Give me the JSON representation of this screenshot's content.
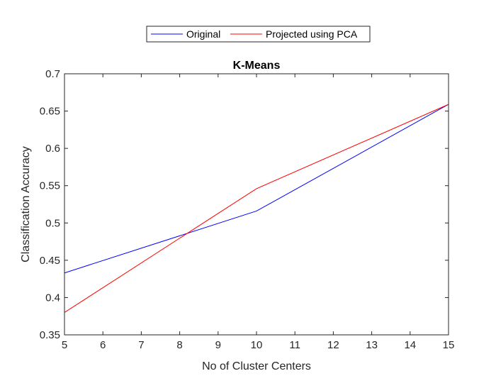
{
  "chart_data": {
    "type": "line",
    "title": "K-Means",
    "xlabel": "No of Cluster Centers",
    "ylabel": "Classification Accuracy",
    "xlim": [
      5,
      15
    ],
    "ylim": [
      0.35,
      0.7
    ],
    "xticks": [
      5,
      6,
      7,
      8,
      9,
      10,
      11,
      12,
      13,
      14,
      15
    ],
    "yticks": [
      0.35,
      0.4,
      0.45,
      0.5,
      0.55,
      0.6,
      0.65,
      0.7
    ],
    "ytick_labels": [
      "0.35",
      "0.4",
      "0.45",
      "0.5",
      "0.55",
      "0.6",
      "0.65",
      "0.7"
    ],
    "grid": false,
    "legend_position": "top-center-outside",
    "series": [
      {
        "name": "Original",
        "color": "#0000ff",
        "x": [
          5,
          10,
          15
        ],
        "y": [
          0.433,
          0.516,
          0.659
        ]
      },
      {
        "name": "Projected using PCA",
        "color": "#ff0000",
        "x": [
          5,
          10,
          15
        ],
        "y": [
          0.38,
          0.546,
          0.659
        ]
      }
    ]
  }
}
